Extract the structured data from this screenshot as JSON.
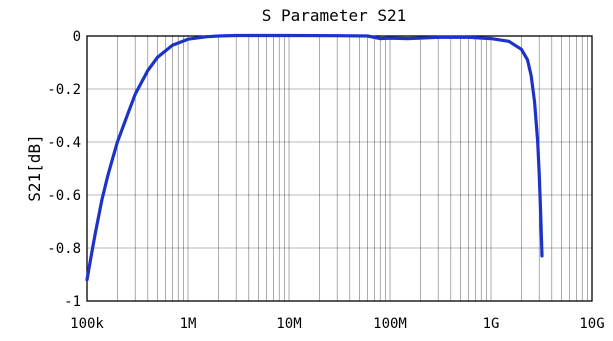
{
  "chart_data": {
    "type": "line",
    "title": "S Parameter S21",
    "xlabel": "",
    "ylabel": "S21[dB]",
    "xscale": "log",
    "xlim": [
      100000,
      10000000000
    ],
    "ylim": [
      -1,
      0
    ],
    "grid": true,
    "x_ticks": [
      {
        "value": 100000,
        "label": "100k"
      },
      {
        "value": 1000000,
        "label": "1M"
      },
      {
        "value": 10000000,
        "label": "10M"
      },
      {
        "value": 100000000,
        "label": "100M"
      },
      {
        "value": 1000000000,
        "label": "1G"
      },
      {
        "value": 10000000000,
        "label": "10G"
      }
    ],
    "y_ticks": [
      {
        "value": 0,
        "label": "0"
      },
      {
        "value": -0.2,
        "label": "-0.2"
      },
      {
        "value": -0.4,
        "label": "-0.4"
      },
      {
        "value": -0.6,
        "label": "-0.6"
      },
      {
        "value": -0.8,
        "label": "-0.8"
      },
      {
        "value": -1,
        "label": "-1"
      }
    ],
    "series": [
      {
        "color": "#1c33c6",
        "x": [
          100000,
          110000,
          120000,
          140000,
          160000,
          180000,
          200000,
          250000,
          300000,
          400000,
          500000,
          700000,
          1000000,
          1500000,
          2000000,
          3000000,
          5000000,
          10000000,
          30000000,
          60000000,
          80000000,
          100000000,
          150000000,
          300000000,
          600000000,
          1000000000,
          1500000000,
          2000000000,
          2300000000,
          2500000000,
          2700000000,
          2900000000,
          3000000000,
          3100000000,
          3200000000
        ],
        "y": [
          -0.92,
          -0.83,
          -0.75,
          -0.62,
          -0.53,
          -0.46,
          -0.4,
          -0.3,
          -0.22,
          -0.13,
          -0.08,
          -0.035,
          -0.012,
          -0.003,
          0.0,
          0.002,
          0.002,
          0.002,
          0.001,
          0.0,
          -0.01,
          -0.008,
          -0.01,
          -0.005,
          -0.005,
          -0.01,
          -0.02,
          -0.05,
          -0.09,
          -0.15,
          -0.25,
          -0.4,
          -0.52,
          -0.66,
          -0.83
        ]
      }
    ]
  }
}
